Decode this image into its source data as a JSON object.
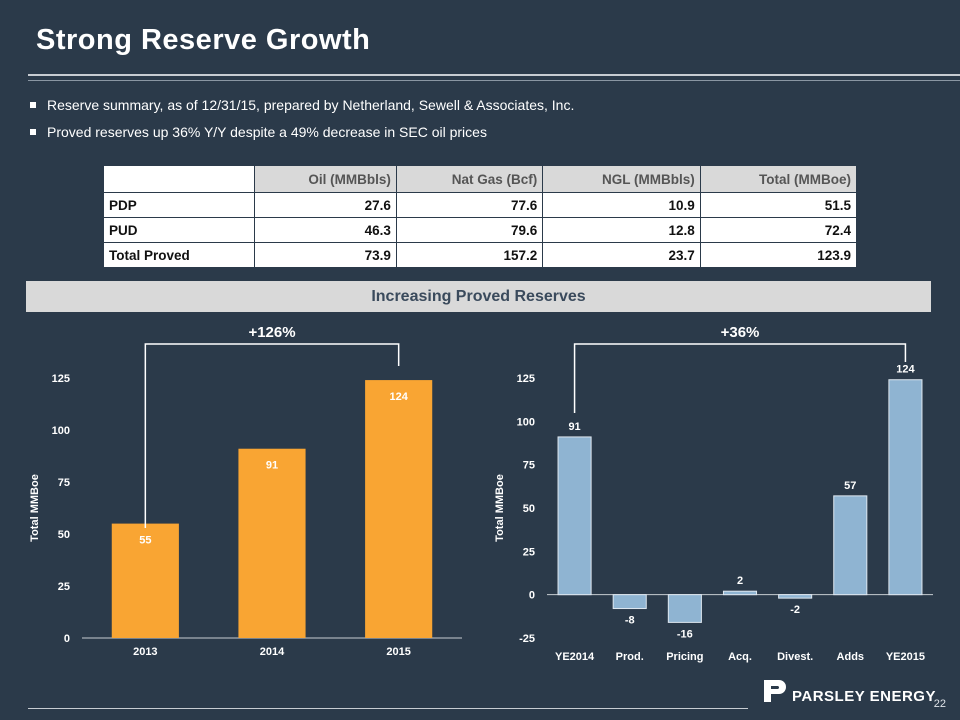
{
  "header": {
    "title": "Strong Reserve Growth"
  },
  "bullets": [
    "Reserve summary, as of 12/31/15, prepared by Netherland, Sewell & Associates, Inc.",
    "Proved reserves up 36% Y/Y despite a 49% decrease in SEC oil prices"
  ],
  "table": {
    "columns": [
      "Oil (MMBbls)",
      "Nat Gas (Bcf)",
      "NGL (MMBbls)",
      "Total (MMBoe)"
    ],
    "rows": [
      {
        "label": "PDP",
        "values": [
          "27.6",
          "77.6",
          "10.9",
          "51.5"
        ]
      },
      {
        "label": "PUD",
        "values": [
          "46.3",
          "79.6",
          "12.8",
          "72.4"
        ]
      },
      {
        "label": "Total Proved",
        "values": [
          "73.9",
          "157.2",
          "23.7",
          "123.9"
        ]
      }
    ]
  },
  "section_title": "Increasing Proved Reserves",
  "colors": {
    "background": "#2b3a4a",
    "bar_orange": "#f9a533",
    "bar_blue": "#8fb4d2"
  },
  "chart_data": [
    {
      "type": "bar",
      "categories": [
        "2013",
        "2014",
        "2015"
      ],
      "values": [
        55,
        91,
        124
      ],
      "ylabel": "Total MMBoe",
      "ylim": [
        0,
        125
      ],
      "yticks": [
        0,
        25,
        50,
        75,
        100,
        125
      ],
      "annotation": "+126%",
      "grid": false
    },
    {
      "type": "bar",
      "categories": [
        "YE2014",
        "Prod.",
        "Pricing",
        "Acq.",
        "Divest.",
        "Adds",
        "YE2015"
      ],
      "values": [
        91,
        -8,
        -16,
        2,
        -2,
        57,
        124
      ],
      "ylabel": "Total MMBoe",
      "ylim": [
        -25,
        125
      ],
      "yticks": [
        -25,
        0,
        25,
        50,
        75,
        100,
        125
      ],
      "annotation": "+36%",
      "grid": false
    }
  ],
  "footer": {
    "logo_text": "PARSLEY ENERGY",
    "page_number": "22"
  }
}
